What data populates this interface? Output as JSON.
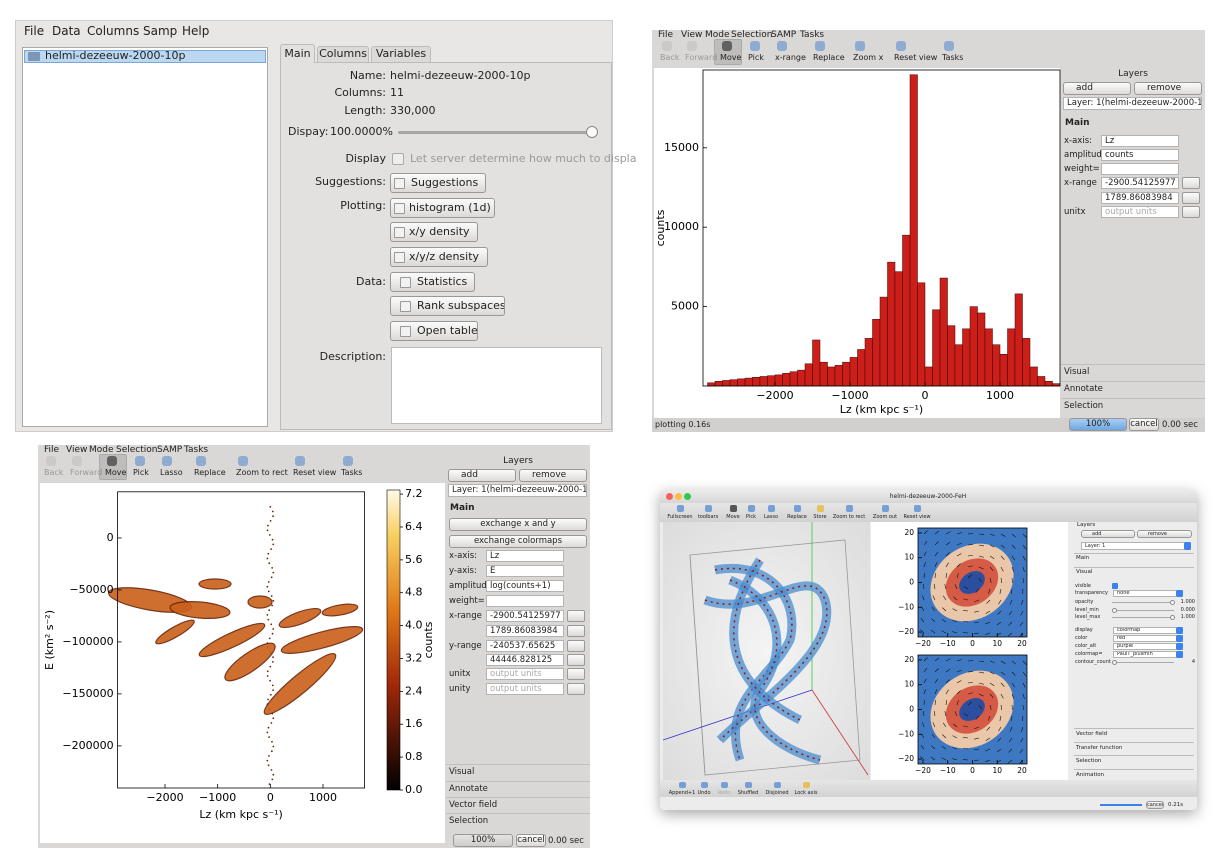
{
  "window1": {
    "menu": [
      "File",
      "Data",
      "Columns",
      "Samp",
      "Help"
    ],
    "datasets": [
      "helmi-dezeeuw-2000-10p"
    ],
    "tabs": [
      "Main",
      "Columns",
      "Variables"
    ],
    "fields": {
      "name_label": "Name:",
      "name": "helmi-dezeeuw-2000-10p",
      "columns_label": "Columns:",
      "columns": 11,
      "length_label": "Length:",
      "length": "330,000",
      "dispay_label": "Dispay:",
      "dispay": "100.0000%",
      "display_label": "Display",
      "display_option": "Let server determine how much to displa",
      "suggestions_label": "Suggestions:",
      "suggestions": "Suggestions",
      "plotting_label": "Plotting:",
      "plots": [
        "histogram (1d)",
        "x/y density",
        "x/y/z density"
      ],
      "data_label": "Data:",
      "data_buttons": [
        "Statistics",
        "Rank subspaces",
        "Open table"
      ],
      "description_label": "Description:"
    }
  },
  "window2": {
    "menu": [
      "File",
      "View",
      "Mode",
      "Selection",
      "SAMP",
      "Tasks"
    ],
    "toolbar": [
      "Back",
      "Forward",
      "Move",
      "Pick",
      "x-range",
      "Replace",
      "Zoom x",
      "Reset view",
      "Tasks"
    ],
    "plot": {
      "type": "histogram",
      "xlabel": "Lz (km kpc s⁻¹)",
      "ylabel": "counts",
      "color": "#cc1f1a",
      "bins": [
        -2900,
        -2800,
        -2700,
        -2600,
        -2500,
        -2400,
        -2300,
        -2200,
        -2100,
        -2000,
        -1900,
        -1800,
        -1700,
        -1600,
        -1500,
        -1400,
        -1300,
        -1200,
        -1100,
        -1000,
        -900,
        -800,
        -700,
        -600,
        -500,
        -400,
        -300,
        -200,
        -100,
        0,
        100,
        200,
        300,
        400,
        500,
        600,
        700,
        800,
        900,
        1000,
        1100,
        1200,
        1300,
        1400,
        1500,
        1600,
        1700,
        1800
      ],
      "values": [
        200,
        300,
        350,
        400,
        450,
        500,
        550,
        600,
        650,
        700,
        800,
        900,
        1000,
        1400,
        2900,
        1500,
        1200,
        1300,
        1500,
        1800,
        2300,
        3000,
        4200,
        5600,
        7800,
        7200,
        9500,
        19600,
        6500,
        1200,
        4800,
        6800,
        3800,
        2600,
        3600,
        5000,
        4600,
        3600,
        2600,
        2000,
        3600,
        5800,
        3000,
        1200,
        600,
        300,
        150
      ],
      "xlim": [
        -2960,
        1800
      ],
      "ylim": [
        0,
        19900
      ],
      "xticks": [
        {
          "value": -2000,
          "label": "−2000"
        },
        {
          "value": -1000,
          "label": "−1000"
        },
        0,
        1000
      ],
      "yticks": [
        5000,
        10000,
        15000
      ]
    },
    "layers": {
      "title": "Layers",
      "add": "add",
      "remove": "remove",
      "layer": "Layer: 1(helmi-dezeeuw-2000-10p)",
      "section": "Main",
      "rows": [
        {
          "label": "x-axis:",
          "value": "Lz"
        },
        {
          "label": "amplitude=",
          "value": "counts"
        },
        {
          "label": "weight="
        },
        {
          "label": "x-range",
          "value": "-2900.54125977"
        },
        {
          "value": "1789.86083984"
        },
        {
          "label": "unitx",
          "value": "output units"
        }
      ],
      "panels": [
        "Visual",
        "Annotate",
        "Selection"
      ]
    },
    "status": {
      "message": "plotting 0.16s",
      "progress": "100%",
      "cancel": "cancel",
      "time": "0.00 sec"
    }
  },
  "window3": {
    "menu": [
      "File",
      "View",
      "Mode",
      "Selection",
      "SAMP",
      "Tasks"
    ],
    "toolbar": [
      "Back",
      "Forward",
      "Move",
      "Pick",
      "Lasso",
      "Replace",
      "Zoom to rect",
      "Reset view",
      "Tasks"
    ],
    "plot": {
      "type": "density",
      "xlabel": "Lz (km kpc s⁻¹)",
      "ylabel": "E (km² s⁻²)",
      "xlim": [
        -2900,
        1790
      ],
      "ylim": [
        -240500,
        44400
      ],
      "xticks": [
        {
          "value": -2000,
          "label": "−2000"
        },
        {
          "value": -1000,
          "label": "−1000"
        },
        0,
        1000
      ],
      "yticks": [
        0,
        {
          "value": -50000,
          "label": "−50000"
        },
        {
          "value": -100000,
          "label": "−100000"
        },
        {
          "value": -150000,
          "label": "−150000"
        },
        {
          "value": -200000,
          "label": "−200000"
        }
      ],
      "colorbar": {
        "label": "counts",
        "lim": [
          0,
          7.3
        ],
        "ticks": [
          7.2,
          6.4,
          5.6,
          4.8,
          {
            "value": 4,
            "label": "4.0"
          },
          3.2,
          2.4,
          1.6,
          0.8,
          {
            "value": 0,
            "label": "0.0"
          }
        ]
      }
    },
    "layers": {
      "title": "Layers",
      "add": "add",
      "remove": "remove",
      "layer": "Layer: 1(helmi-dezeeuw-2000-10p)",
      "section": "Main",
      "buttons": [
        "exchange x and y",
        "exchange colormaps"
      ],
      "rows": [
        {
          "label": "x-axis:",
          "value": "Lz"
        },
        {
          "label": "y-axis:",
          "value": "E"
        },
        {
          "label": "amplitude=",
          "value": "log(counts+1)"
        },
        {
          "label": "weight="
        },
        {
          "label": "x-range",
          "value": "-2900.54125977"
        },
        {
          "value": "1789.86083984"
        },
        {
          "label": "y-range",
          "value": "-240537.65625"
        },
        {
          "value": "44446.828125"
        },
        {
          "label": "unitx",
          "value": "output units"
        },
        {
          "label": "unity",
          "value": "output units"
        }
      ],
      "panels": [
        "Visual",
        "Annotate",
        "Vector field",
        "Selection"
      ]
    },
    "status": {
      "progress": "100%",
      "cancel": "cancel",
      "time": "0.00 sec"
    }
  },
  "window4": {
    "title": "helmi-dezeeuw-2000-FeH",
    "toolbar": [
      "Fullscreen",
      "toolbars",
      "Move",
      "Pick",
      "Lasso",
      "Replace",
      "Store",
      "Zoom to rect",
      "Zoom out",
      "Reset view"
    ],
    "quiver": {
      "xlim": [
        -22,
        22
      ],
      "ylim": [
        -22,
        22
      ],
      "xticks": [
        {
          "value": -20,
          "label": "−20"
        },
        {
          "value": -10,
          "label": "−10"
        },
        0,
        10,
        20
      ],
      "yticks": [
        20,
        10,
        0,
        {
          "value": -10,
          "label": "−10"
        },
        {
          "value": -20,
          "label": "−20"
        }
      ]
    },
    "layers": {
      "title": "Layers",
      "add": "add",
      "remove": "remove",
      "layer": "Layer: 1",
      "sections": [
        "Main",
        "Visual"
      ],
      "rows": [
        {
          "label": "visible"
        },
        {
          "label": "transparency",
          "value": "none"
        },
        {
          "label": "opacity",
          "value": "1.000"
        },
        {
          "label": "level_min",
          "value": "0.000"
        },
        {
          "label": "level_max",
          "value": "1.000"
        },
        {
          "label": "display",
          "value": "colormap"
        },
        {
          "label": "color",
          "value": "red"
        },
        {
          "label": "color_alt",
          "value": "purple"
        },
        {
          "label": "colormap=",
          "value": "PaulT_plusmin"
        },
        {
          "label": "contour_count",
          "value": "4"
        }
      ],
      "panels": [
        "Vector field",
        "Transfer function",
        "Selection",
        "Animation"
      ]
    },
    "bottom_toolbar": [
      "Append+1",
      "Undo",
      "Redo",
      "Shuffled",
      "Disjoined",
      "Lock axis"
    ],
    "status": {
      "cancel": "cancel",
      "time": "0.21s"
    }
  }
}
